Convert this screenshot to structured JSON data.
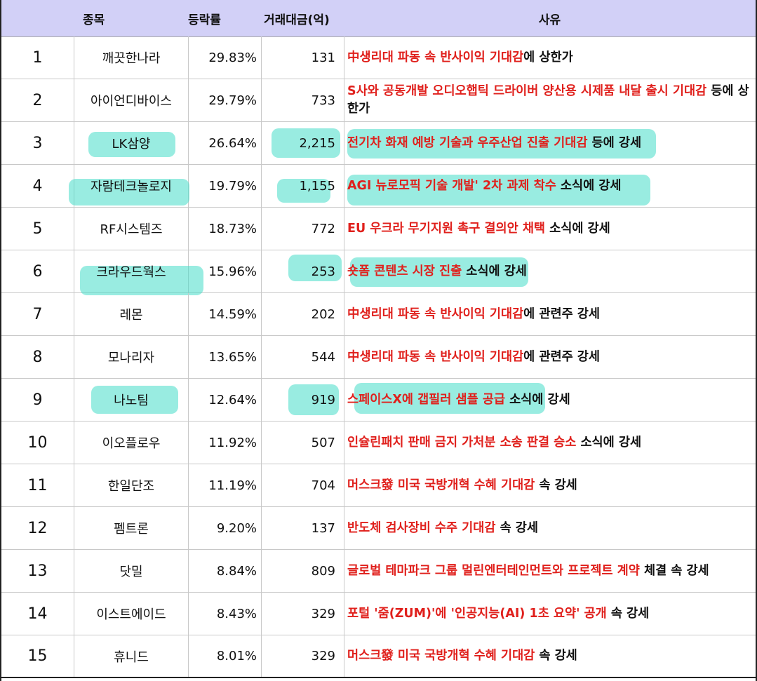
{
  "header": {
    "rank": "",
    "name": "종목",
    "rate": "등락률",
    "amount": "거래대금(억)",
    "reason": "사유"
  },
  "rows": [
    {
      "rank": "1",
      "name": "깨끗한나라",
      "rate": "29.83%",
      "amount": "131",
      "reason_red": "中생리대 파동 속 반사이익 기대감",
      "reason_black": "에 상한가"
    },
    {
      "rank": "2",
      "name": "아이언디바이스",
      "rate": "29.79%",
      "amount": "733",
      "reason_red": "S사와 공동개발 오디오햅틱 드라이버 양산용 시제품 내달 출시 기대감",
      "reason_black": " 등에 상한가"
    },
    {
      "rank": "3",
      "name": "LK삼양",
      "rate": "26.64%",
      "amount": "2,215",
      "reason_red": "전기차 화재 예방 기술과 우주산업 진출 기대감",
      "reason_black": " 등에 강세"
    },
    {
      "rank": "4",
      "name": "자람테크놀로지",
      "rate": "19.79%",
      "amount": "1,155",
      "reason_red": "AGI 뉴로모픽 기술 개발' 2차 과제 착수",
      "reason_black": " 소식에 강세"
    },
    {
      "rank": "5",
      "name": "RF시스템즈",
      "rate": "18.73%",
      "amount": "772",
      "reason_red": "EU 우크라 무기지원 촉구 결의안 채택",
      "reason_black": " 소식에 강세"
    },
    {
      "rank": "6",
      "name": "크라우드웍스",
      "rate": "15.96%",
      "amount": "253",
      "reason_red": "숏폼 콘텐츠 시장 진출",
      "reason_black": " 소식에 강세"
    },
    {
      "rank": "7",
      "name": "레몬",
      "rate": "14.59%",
      "amount": "202",
      "reason_red": "中생리대 파동 속 반사이익 기대감",
      "reason_black": "에 관련주 강세"
    },
    {
      "rank": "8",
      "name": "모나리자",
      "rate": "13.65%",
      "amount": "544",
      "reason_red": "中생리대 파동 속 반사이익 기대감",
      "reason_black": "에 관련주 강세"
    },
    {
      "rank": "9",
      "name": "나노팀",
      "rate": "12.64%",
      "amount": "919",
      "reason_red": "스페이스X에 갭필러 샘플 공급",
      "reason_black": " 소식에 강세"
    },
    {
      "rank": "10",
      "name": "이오플로우",
      "rate": "11.92%",
      "amount": "507",
      "reason_red": "인슐린패치 판매 금지 가처분 소송 판결 승소",
      "reason_black": " 소식에 강세"
    },
    {
      "rank": "11",
      "name": "한일단조",
      "rate": "11.19%",
      "amount": "704",
      "reason_red": "머스크發 미국 국방개혁 수혜 기대감",
      "reason_black": " 속 강세"
    },
    {
      "rank": "12",
      "name": "펨트론",
      "rate": "9.20%",
      "amount": "137",
      "reason_red": "반도체 검사장비 수주 기대감",
      "reason_black": " 속 강세"
    },
    {
      "rank": "13",
      "name": "닷밀",
      "rate": "8.84%",
      "amount": "809",
      "reason_red": "글로벌 테마파크 그룹 멀린엔터테인먼트와 프로젝트 계약",
      "reason_black": " 체결 속 강세"
    },
    {
      "rank": "14",
      "name": "이스트에이드",
      "rate": "8.43%",
      "amount": "329",
      "reason_red": "포털 '줌(ZUM)'에 '인공지능(AI) 1초 요약' 공개",
      "reason_black": " 속 강세"
    },
    {
      "rank": "15",
      "name": "휴니드",
      "rate": "8.01%",
      "amount": "329",
      "reason_red": "머스크發 미국 국방개혁 수혜 기대감",
      "reason_black": " 속 강세"
    }
  ],
  "highlight_color": "#46dcc8",
  "header_color": "#d2d0f7",
  "reason_red_color": "#e0201c"
}
